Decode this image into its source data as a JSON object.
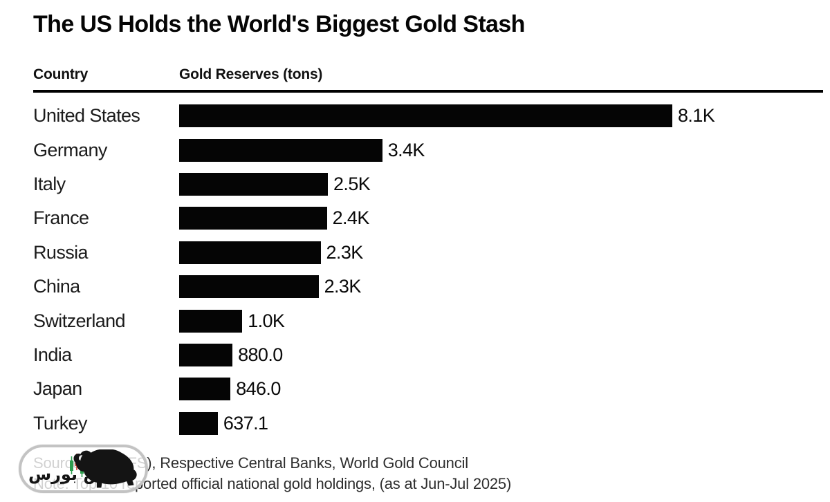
{
  "title": "The US Holds the World's Biggest Gold Stash",
  "table": {
    "country_header": "Country",
    "value_header": "Gold Reserves (tons)"
  },
  "chart_data": {
    "type": "bar",
    "orientation": "horizontal",
    "title": "The US Holds the World's Biggest Gold Stash",
    "xlabel": "Gold Reserves (tons)",
    "ylabel": "Country",
    "categories": [
      "United States",
      "Germany",
      "Italy",
      "France",
      "Russia",
      "China",
      "Switzerland",
      "India",
      "Japan",
      "Turkey"
    ],
    "values": [
      8133,
      3350,
      2452,
      2437,
      2333,
      2300,
      1040,
      880,
      846,
      637.1
    ],
    "value_labels": [
      "8.1K",
      "3.4K",
      "2.5K",
      "2.4K",
      "2.3K",
      "2.3K",
      "1.0K",
      "880.0",
      "846.0",
      "637.1"
    ],
    "max_value": 8133,
    "grid": false,
    "legend": false,
    "bar_color": "#050505",
    "value_label_position": "end-of-bar"
  },
  "footer": {
    "source_line": "Source: IMF (IFS), Respective Central Banks, World Gold Council",
    "note_line": "Note: Top 10 reported official national gold holdings, (as at Jun-Jul 2025)"
  },
  "watermark": {
    "brand_text": "نبض بورس",
    "icons": [
      "bull-icon",
      "candlestick-icon"
    ]
  },
  "colors": {
    "background": "#ffffff",
    "bar": "#050505",
    "title": "#050505",
    "labels": "#1c1c1c",
    "divider": "#000000",
    "footer_text": "#2e2e2e",
    "watermark_border": "#c3c3c3",
    "candle_green": "#2e9e4f",
    "candle_red": "#d23f31"
  }
}
